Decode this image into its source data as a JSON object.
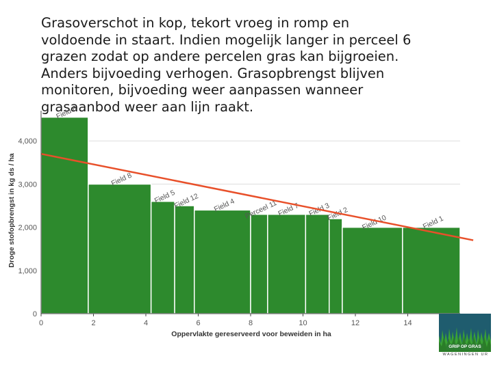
{
  "intro": {
    "lines": [
      "Grasoverschot in kop, tekort vroeg in romp en",
      "voldoende in staart. Indien mogelijk langer in perceel 6",
      "grazen zodat op andere percelen gras kan bijgroeien.",
      "Anders bijvoeding verhogen. Grasopbrengst blijven",
      "monitoren, bijvoeding weer aanpassen wanneer",
      "grasaanbod weer aan lijn raakt."
    ]
  },
  "chart_data": {
    "type": "bar",
    "xlabel": "Oppervlakte gereserveerd voor beweiden in ha",
    "ylabel": "Droge stofopbrengst in kg ds / ha",
    "xlim": [
      0,
      16
    ],
    "ylim": [
      0,
      4700
    ],
    "xticks": [
      0,
      2,
      4,
      6,
      8,
      10,
      12,
      14
    ],
    "yticks": [
      0,
      1000,
      2000,
      3000,
      4000
    ],
    "ytick_labels": [
      "0",
      "1,000",
      "2,000",
      "3,000",
      "4,000"
    ],
    "bars": [
      {
        "label": "Field 6",
        "x0": 0.0,
        "x1": 1.8,
        "value": 4550
      },
      {
        "label": "Field 8",
        "x0": 1.8,
        "x1": 4.2,
        "value": 3000
      },
      {
        "label": "Field 5",
        "x0": 4.2,
        "x1": 5.1,
        "value": 2600
      },
      {
        "label": "Field 12",
        "x0": 5.1,
        "x1": 5.85,
        "value": 2500
      },
      {
        "label": "Field 4",
        "x0": 5.85,
        "x1": 8.0,
        "value": 2400
      },
      {
        "label": "Perceel 11",
        "x0": 8.0,
        "x1": 8.65,
        "value": 2300
      },
      {
        "label": "Field 7",
        "x0": 8.65,
        "x1": 10.1,
        "value": 2300
      },
      {
        "label": "Field 3",
        "x0": 10.1,
        "x1": 11.0,
        "value": 2300
      },
      {
        "label": "Field 2",
        "x0": 11.0,
        "x1": 11.5,
        "value": 2200
      },
      {
        "label": "Field 10",
        "x0": 11.5,
        "x1": 13.8,
        "value": 2000
      },
      {
        "label": "Field 1",
        "x0": 13.8,
        "x1": 16.0,
        "value": 2000
      }
    ],
    "trend_line": {
      "x": [
        0,
        16.5
      ],
      "y": [
        3700,
        1700
      ],
      "color": "#e8502a"
    },
    "colors": {
      "bar": "#2d8a2d",
      "bar_stroke": "#ffffff",
      "grid": "#dddddd",
      "axis": "#444444"
    }
  },
  "logo": {
    "text": "GRIP OP GRAS",
    "org": "WAGENINGEN UR",
    "colors": {
      "box": "#1f5c6e",
      "grass": "#3aa335"
    }
  }
}
